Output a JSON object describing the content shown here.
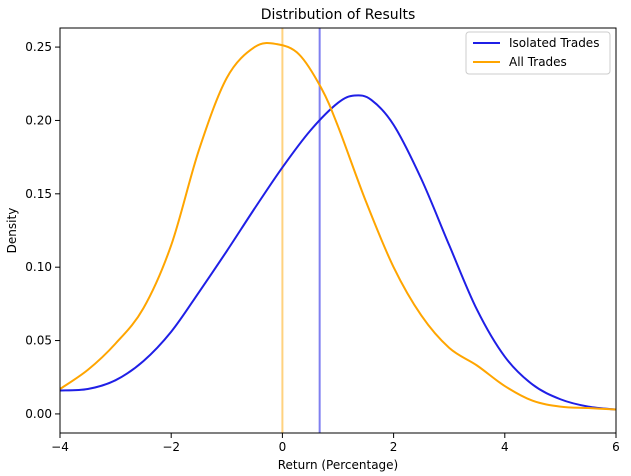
{
  "chart_data": {
    "type": "line",
    "title": "Distribution of Results",
    "xlabel": "Return (Percentage)",
    "ylabel": "Density",
    "xlim": [
      -4,
      6
    ],
    "ylim": [
      -0.013,
      0.263
    ],
    "x_ticks": [
      -4,
      -2,
      0,
      2,
      4,
      6
    ],
    "x_tick_labels": [
      "−4",
      "−2",
      "0",
      "2",
      "4",
      "6"
    ],
    "y_ticks": [
      0.0,
      0.05,
      0.1,
      0.15,
      0.2,
      0.25
    ],
    "y_tick_labels": [
      "0.00",
      "0.05",
      "0.10",
      "0.15",
      "0.20",
      "0.25"
    ],
    "grid": false,
    "legend_position": "top-right",
    "series": [
      {
        "name": "Isolated Trades",
        "color": "#1f1fe6",
        "x": [
          -4.0,
          -3.5,
          -3.0,
          -2.5,
          -2.0,
          -1.5,
          -1.0,
          -0.5,
          0.0,
          0.5,
          1.0,
          1.3,
          1.6,
          2.0,
          2.5,
          3.0,
          3.5,
          4.0,
          4.5,
          5.0,
          5.5,
          6.0
        ],
        "y": [
          0.016,
          0.017,
          0.023,
          0.036,
          0.056,
          0.083,
          0.111,
          0.14,
          0.168,
          0.193,
          0.212,
          0.217,
          0.214,
          0.197,
          0.16,
          0.115,
          0.071,
          0.039,
          0.02,
          0.01,
          0.005,
          0.003
        ]
      },
      {
        "name": "All Trades",
        "color": "#ffa500",
        "x": [
          -4.0,
          -3.5,
          -3.0,
          -2.5,
          -2.0,
          -1.5,
          -1.0,
          -0.5,
          -0.1,
          0.3,
          0.7,
          1.0,
          1.5,
          2.0,
          2.5,
          3.0,
          3.5,
          4.0,
          4.5,
          5.0,
          5.5,
          6.0
        ],
        "y": [
          0.017,
          0.03,
          0.048,
          0.072,
          0.115,
          0.18,
          0.229,
          0.25,
          0.252,
          0.245,
          0.222,
          0.196,
          0.145,
          0.1,
          0.067,
          0.045,
          0.033,
          0.019,
          0.009,
          0.005,
          0.004,
          0.003
        ]
      }
    ],
    "vertical_lines": [
      {
        "x": 0.67,
        "color": "#7f7ff0"
      },
      {
        "x": 0.0,
        "color": "#ffd27f"
      }
    ]
  }
}
